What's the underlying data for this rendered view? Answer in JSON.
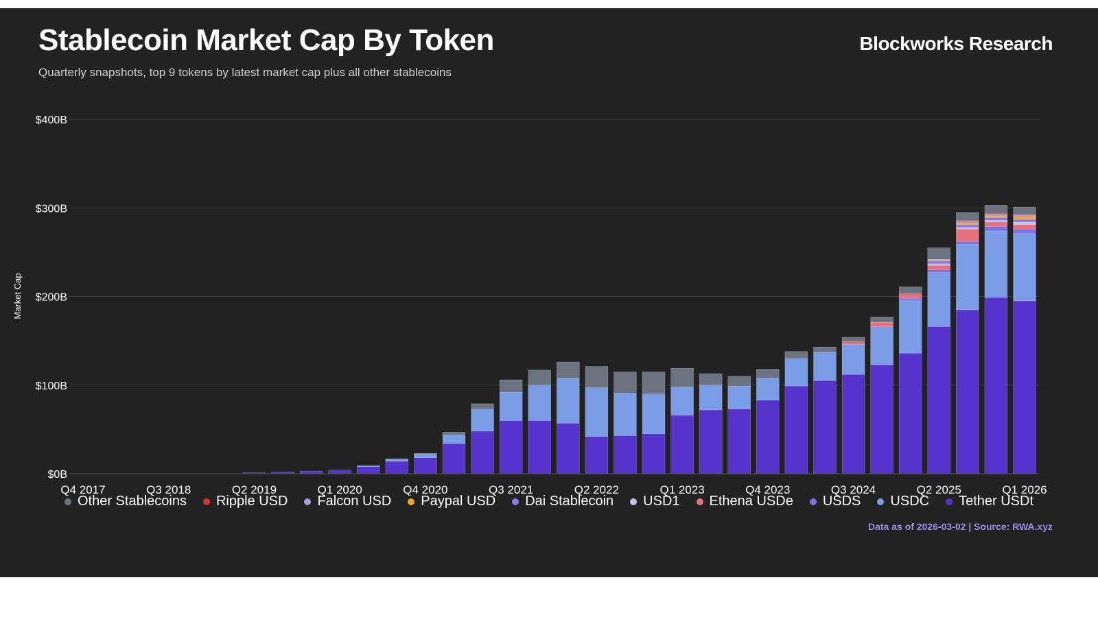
{
  "header": {
    "title": "Stablecoin Market Cap By Token",
    "subtitle": "Quarterly snapshots, top 9 tokens by latest market cap plus all other stablecoins",
    "brand": "Blockworks Research"
  },
  "footer": {
    "note": "Data as of 2026-03-02 | Source: RWA.xyz"
  },
  "chart_data": {
    "type": "bar",
    "stacked": true,
    "title": "Stablecoin Market Cap By Token",
    "subtitle": "Quarterly snapshots, top 9 tokens by latest market cap plus all other stablecoins",
    "xlabel": "",
    "ylabel": "Market Cap",
    "ylim": [
      0,
      400
    ],
    "y_unit": "$B",
    "y_ticks": [
      "$0B",
      "$100B",
      "$200B",
      "$300B",
      "$400B"
    ],
    "y_tick_values": [
      0,
      100,
      200,
      300,
      400
    ],
    "grid": true,
    "legend_position": "bottom",
    "categories": [
      "Q4 2017",
      "Q1 2018",
      "Q2 2018",
      "Q3 2018",
      "Q4 2018",
      "Q1 2019",
      "Q2 2019",
      "Q3 2019",
      "Q4 2019",
      "Q1 2020",
      "Q2 2020",
      "Q3 2020",
      "Q4 2020",
      "Q1 2021",
      "Q2 2021",
      "Q3 2021",
      "Q4 2021",
      "Q1 2022",
      "Q2 2022",
      "Q3 2022",
      "Q4 2022",
      "Q1 2023",
      "Q2 2023",
      "Q3 2023",
      "Q4 2023",
      "Q1 2024",
      "Q2 2024",
      "Q3 2024",
      "Q4 2024",
      "Q1 2025",
      "Q2 2025",
      "Q3 2025",
      "Q4 2025",
      "Q1 2026"
    ],
    "x_tick_labels": [
      "Q4 2017",
      "Q3 2018",
      "Q2 2019",
      "Q1 2020",
      "Q4 2020",
      "Q3 2021",
      "Q2 2022",
      "Q1 2023",
      "Q4 2023",
      "Q3 2024",
      "Q2 2025",
      "Q1 2026"
    ],
    "series": [
      {
        "name": "Tether USDt",
        "color": "#5533cc",
        "values": [
          0,
          0,
          0,
          0,
          0,
          0,
          1,
          2,
          3,
          4,
          8,
          14,
          18,
          34,
          48,
          60,
          60,
          57,
          42,
          43,
          45,
          66,
          72,
          73,
          83,
          99,
          105,
          112,
          123,
          136,
          166,
          185,
          199,
          195
        ]
      },
      {
        "name": "USDC",
        "color": "#7b9de8",
        "values": [
          0,
          0,
          0,
          0,
          0,
          0,
          0,
          0,
          0,
          0,
          1,
          2,
          4,
          10,
          25,
          32,
          40,
          51,
          55,
          48,
          45,
          32,
          28,
          26,
          25,
          31,
          32,
          34,
          43,
          60,
          61,
          74,
          75,
          76
        ]
      },
      {
        "name": "USDS",
        "color": "#7f6fe0",
        "values": [
          0,
          0,
          0,
          0,
          0,
          0,
          0,
          0,
          0,
          0,
          0,
          0,
          0,
          0,
          0,
          0,
          0,
          0,
          0,
          0,
          0,
          0,
          0,
          0,
          0,
          0,
          0,
          0,
          0,
          2,
          3,
          3,
          5,
          5
        ]
      },
      {
        "name": "Ethena USDe",
        "color": "#e8707c",
        "values": [
          0,
          0,
          0,
          0,
          0,
          0,
          0,
          0,
          0,
          0,
          0,
          0,
          0,
          0,
          0,
          0,
          0,
          0,
          0,
          0,
          0,
          0,
          0,
          0,
          0,
          0,
          0,
          3,
          5,
          5,
          5,
          14,
          5,
          5
        ]
      },
      {
        "name": "USD1",
        "color": "#c8c0ec",
        "values": [
          0,
          0,
          0,
          0,
          0,
          0,
          0,
          0,
          0,
          0,
          0,
          0,
          0,
          0,
          0,
          0,
          0,
          0,
          0,
          0,
          0,
          0,
          0,
          0,
          0,
          0,
          0,
          0,
          0,
          0,
          2,
          2,
          2,
          3
        ]
      },
      {
        "name": "Dai Stablecoin",
        "color": "#8a78f0",
        "values": [
          0,
          0,
          0,
          0,
          0,
          0,
          0,
          0,
          0,
          0,
          0,
          0,
          0,
          0,
          0,
          0,
          0,
          0,
          0,
          0,
          0,
          0,
          0,
          0,
          0,
          0,
          0,
          0,
          0,
          0,
          3,
          3,
          3,
          3
        ]
      },
      {
        "name": "Paypal USD",
        "color": "#f5a623",
        "values": [
          0,
          0,
          0,
          0,
          0,
          0,
          0,
          0,
          0,
          0,
          0,
          0,
          0,
          0,
          0,
          0,
          0,
          0,
          0,
          0,
          0,
          0,
          0,
          0,
          0,
          0,
          0,
          0,
          0,
          0,
          1,
          2,
          2,
          3
        ]
      },
      {
        "name": "Falcon USD",
        "color": "#a79ee0",
        "values": [
          0,
          0,
          0,
          0,
          0,
          0,
          0,
          0,
          0,
          0,
          0,
          0,
          0,
          0,
          0,
          0,
          0,
          0,
          0,
          0,
          0,
          0,
          0,
          0,
          0,
          0,
          0,
          0,
          0,
          0,
          1,
          2,
          2,
          2
        ]
      },
      {
        "name": "Ripple USD",
        "color": "#e03131",
        "values": [
          0,
          0,
          0,
          0,
          0,
          0,
          0,
          0,
          0,
          0,
          0,
          0,
          0,
          0,
          0,
          0,
          0,
          0,
          0,
          0,
          0,
          0,
          0,
          0,
          0,
          0,
          0,
          0,
          0,
          0,
          0,
          1,
          1,
          1
        ]
      },
      {
        "name": "Other Stablecoins",
        "color": "#6b7380",
        "values": [
          0,
          0,
          0,
          0,
          0,
          0,
          0,
          0,
          0,
          0,
          0,
          1,
          1,
          3,
          6,
          14,
          17,
          18,
          24,
          24,
          25,
          21,
          13,
          11,
          10,
          8,
          6,
          5,
          6,
          8,
          13,
          9,
          9,
          8
        ]
      }
    ],
    "legend_order": [
      "Other Stablecoins",
      "Ripple USD",
      "Falcon USD",
      "Paypal USD",
      "Dai Stablecoin",
      "USD1",
      "Ethena USDe",
      "USDS",
      "USDC",
      "Tether USDt"
    ]
  }
}
